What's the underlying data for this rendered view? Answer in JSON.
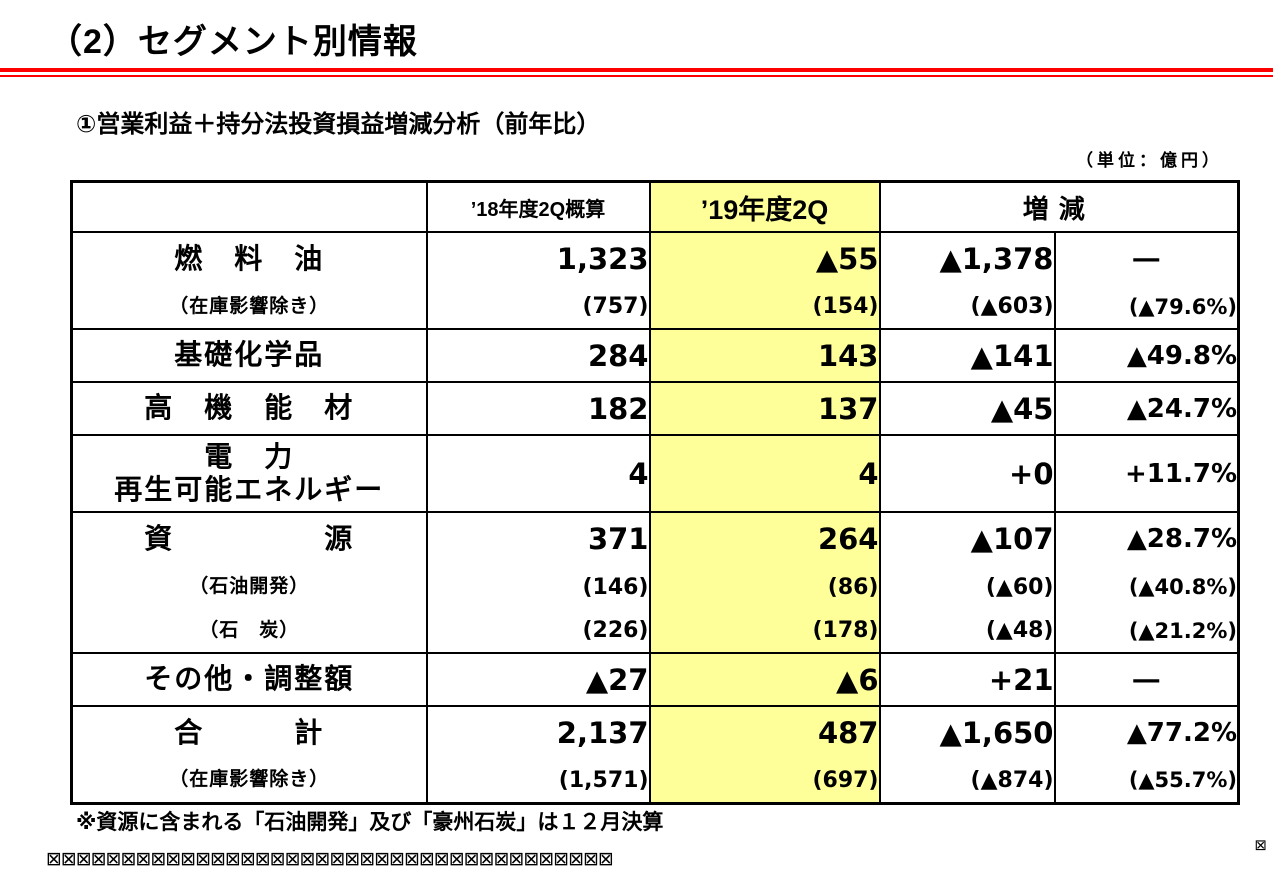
{
  "page": {
    "title": "（2）セグメント別情報",
    "subtitle": "①営業利益＋持分法投資損益増減分析（前年比）",
    "unit_note": "（単位：億円）",
    "footnote": "※資源に含まれる「石油開発」及び「豪州石炭」は１２月決算",
    "footer_glyphs": "⊠⊠⊠⊠⊠⊠⊠⊠⊠⊠⊠⊠⊠⊠⊠⊠⊠⊠⊠⊠⊠⊠⊠⊠⊠⊠⊠⊠⊠⊠⊠⊠⊠⊠⊠⊠⊠⊠",
    "corner_glyph": "⊠",
    "accent_red": "#ff0000"
  },
  "table": {
    "headers": [
      "",
      "’18年度2Q概算",
      "’19年度2Q",
      "増減"
    ],
    "highlight_color": "#FFFF99",
    "rows": [
      {
        "label": "燃　料　油",
        "sub": false,
        "tall": false,
        "group_start": true,
        "values": [
          "1,323",
          "▲55",
          "▲1,378",
          "―"
        ]
      },
      {
        "label": "（在庫影響除き）",
        "sub": true,
        "tall": false,
        "group_start": false,
        "values": [
          "(757)",
          "(154)",
          "(▲603)",
          "(▲79.6%)"
        ]
      },
      {
        "label": "基礎化学品",
        "sub": false,
        "tall": false,
        "group_start": true,
        "values": [
          "284",
          "143",
          "▲141",
          "▲49.8%"
        ]
      },
      {
        "label": "高　機　能　材",
        "sub": false,
        "tall": false,
        "group_start": true,
        "values": [
          "182",
          "137",
          "▲45",
          "▲24.7%"
        ]
      },
      {
        "label": "電　力\n再生可能エネルギー",
        "sub": false,
        "tall": true,
        "group_start": true,
        "values": [
          "4",
          "4",
          "+0",
          "+11.7%"
        ]
      },
      {
        "label": "資　　　　　源",
        "sub": false,
        "tall": false,
        "group_start": true,
        "values": [
          "371",
          "264",
          "▲107",
          "▲28.7%"
        ]
      },
      {
        "label": "（石油開発）",
        "sub": true,
        "tall": false,
        "group_start": false,
        "values": [
          "(146)",
          "(86)",
          "(▲60)",
          "(▲40.8%)"
        ]
      },
      {
        "label": "（石　炭）",
        "sub": true,
        "tall": false,
        "group_start": false,
        "values": [
          "(226)",
          "(178)",
          "(▲48)",
          "(▲21.2%)"
        ]
      },
      {
        "label": "その他・調整額",
        "sub": false,
        "tall": false,
        "group_start": true,
        "values": [
          "▲27",
          "▲6",
          "+21",
          "―"
        ]
      },
      {
        "label": "合　　　計",
        "sub": false,
        "tall": false,
        "group_start": true,
        "values": [
          "2,137",
          "487",
          "▲1,650",
          "▲77.2%"
        ]
      },
      {
        "label": "（在庫影響除き）",
        "sub": true,
        "tall": false,
        "group_start": false,
        "values": [
          "(1,571)",
          "(697)",
          "(▲874)",
          "(▲55.7%)"
        ]
      }
    ]
  }
}
